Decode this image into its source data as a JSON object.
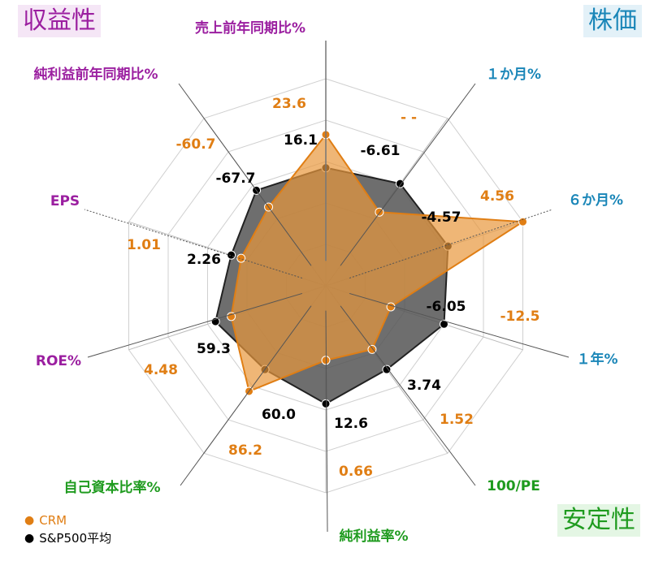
{
  "corner_labels": {
    "top_left": "収益性",
    "top_right": "株価",
    "bottom_right": "安定性"
  },
  "legend": {
    "crm": "CRM",
    "sp500": "S&P500平均",
    "dot": "●"
  },
  "colors": {
    "crm": "#e07e14",
    "crm_fill": "#e8973c",
    "sp500": "#000000",
    "sp500_fill": "#555555",
    "group_profitability": "#9b1fa0",
    "group_price": "#1a86b8",
    "group_stability": "#1f9b1f",
    "grid": "#d0d0d0"
  },
  "chart_data": {
    "type": "radar",
    "axes": [
      {
        "label": "売上前年同期比%",
        "group": "profitability",
        "crm": "23.6",
        "sp500": "16.1"
      },
      {
        "label": "１か月%",
        "group": "price",
        "crm": "- -",
        "sp500": "-6.61"
      },
      {
        "label": "６か月%",
        "group": "price",
        "crm": "4.56",
        "sp500": "-4.57"
      },
      {
        "label": "１年%",
        "group": "price",
        "crm": "-12.5",
        "sp500": "-6.05"
      },
      {
        "label": "100/PE",
        "group": "stability",
        "crm": "1.52",
        "sp500": "3.74"
      },
      {
        "label": "純利益率%",
        "group": "stability",
        "crm": "0.66",
        "sp500": "12.6"
      },
      {
        "label": "自己資本比率%",
        "group": "stability",
        "crm": "86.2",
        "sp500": "60.0"
      },
      {
        "label": "ROE%",
        "group": "profitability",
        "crm": "4.48",
        "sp500": "59.3"
      },
      {
        "label": "EPS",
        "group": "profitability",
        "crm": "1.01",
        "sp500": "2.26"
      },
      {
        "label": "純利益前年同期比%",
        "group": "profitability",
        "crm": "-60.7",
        "sp500": "-67.7"
      }
    ],
    "series": [
      {
        "name": "CRM",
        "normalized": [
          0.73,
          0.44,
          1.0,
          0.33,
          0.38,
          0.36,
          0.63,
          0.48,
          0.43,
          0.47
        ]
      },
      {
        "name": "S&P500平均",
        "normalized": [
          0.57,
          0.61,
          0.62,
          0.6,
          0.5,
          0.57,
          0.5,
          0.56,
          0.48,
          0.57
        ]
      }
    ],
    "grid_rings": 5
  }
}
